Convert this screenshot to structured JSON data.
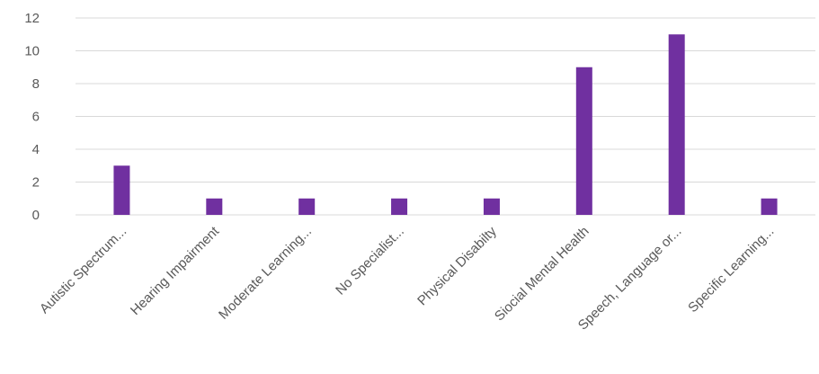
{
  "chart_data": {
    "type": "bar",
    "categories": [
      "Autistic Spectrum...",
      "Hearing Impairment",
      "Moderate Learning...",
      "No Specialist...",
      "Physical Disabilty",
      "Siocial Mental Health",
      "Speech, Language or...",
      "Specific Learning..."
    ],
    "values": [
      3,
      1,
      1,
      1,
      1,
      9,
      11,
      1
    ],
    "yticks": [
      "0",
      "2",
      "4",
      "6",
      "8",
      "10",
      "12"
    ],
    "ylim": [
      0,
      12
    ],
    "grid": true,
    "legend": "none",
    "bar_color": "#7030a0",
    "title": "",
    "xlabel": "",
    "ylabel": ""
  }
}
